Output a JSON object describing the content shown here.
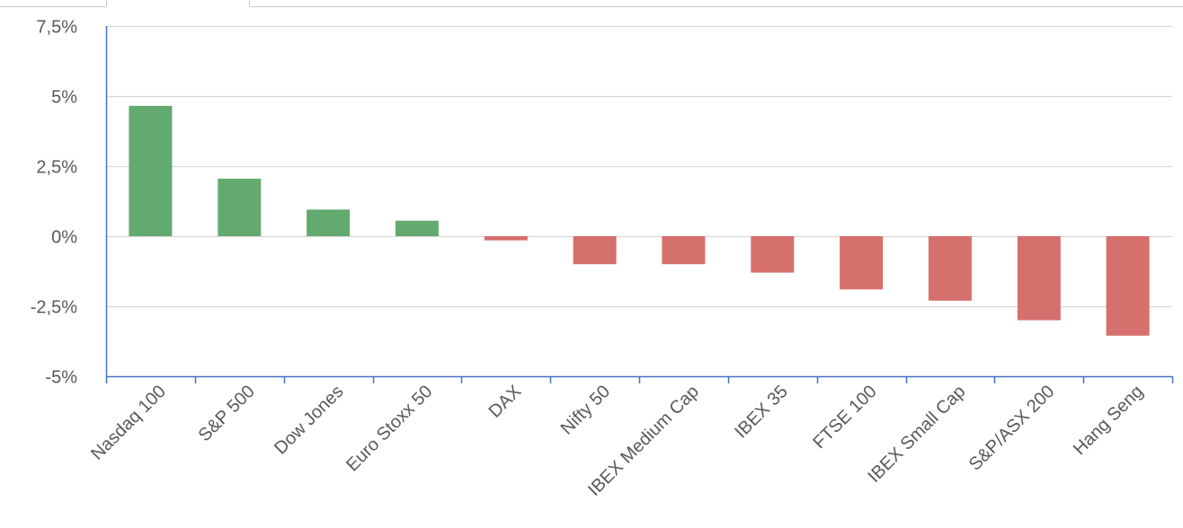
{
  "chart_data": {
    "type": "bar",
    "title": "",
    "xlabel": "",
    "ylabel": "",
    "categories": [
      "Nasdaq 100",
      "S&P 500",
      "Dow Jones",
      "Euro Stoxx 50",
      "DAX",
      "Nifty 50",
      "IBEX Medium Cap",
      "IBEX 35",
      "FTSE 100",
      "IBEX Small Cap",
      "S&P/ASX 200",
      "Hang Seng"
    ],
    "values": [
      4.65,
      2.05,
      0.95,
      0.55,
      -0.15,
      -1.0,
      -1.0,
      -1.3,
      -1.9,
      -2.3,
      -3.0,
      -3.55
    ],
    "ylim": [
      -5,
      7.5
    ],
    "yticks": [
      7.5,
      5,
      2.5,
      0,
      -2.5,
      -5
    ],
    "ytick_labels": [
      "7,5%",
      "5%",
      "2,5%",
      "0%",
      "-2,5%",
      "-5%"
    ],
    "grid": true,
    "colors": {
      "positive": "#63aa70",
      "negative": "#d6706d",
      "grid": "#d9d9d9",
      "axis": "#4472c4"
    }
  }
}
